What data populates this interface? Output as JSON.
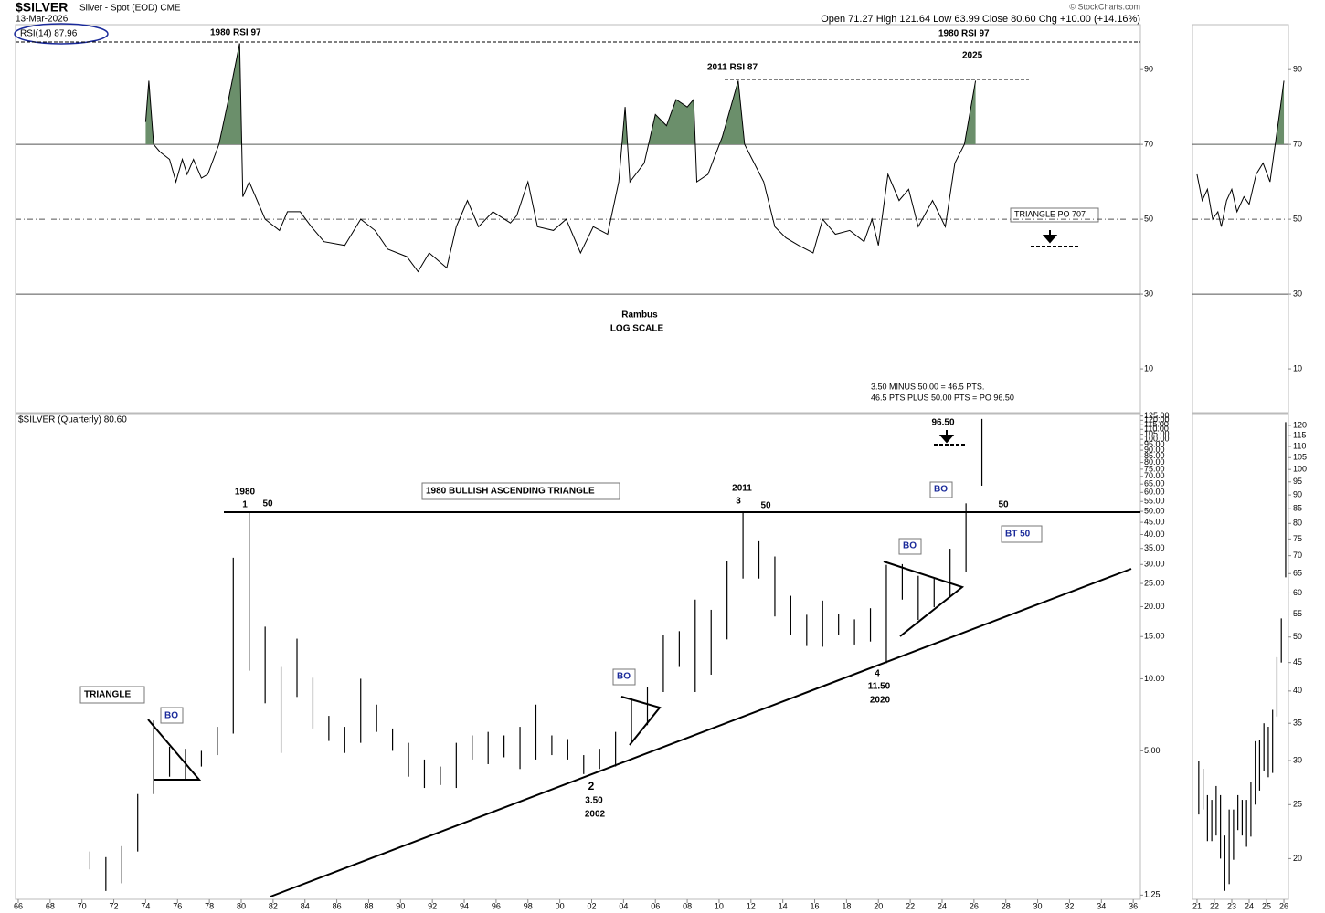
{
  "header": {
    "symbol": "$SILVER",
    "description": "Silver - Spot (EOD) CME",
    "date": "13-Mar-2026",
    "ohlc": "Open 71.27  High 121.64  Low 63.99  Close 80.60  Chg +10.00 (+14.16%)",
    "source": "© StockCharts.com"
  },
  "chart_data": [
    {
      "type": "stock",
      "xlim": [
        1965.83,
        2036.45
      ],
      "xticks": [
        {
          "value": 1966,
          "label": "66"
        },
        {
          "value": 1968,
          "label": "68"
        },
        {
          "value": 1970,
          "label": "70"
        },
        {
          "value": 1972,
          "label": "72"
        },
        {
          "value": 1974,
          "label": "74"
        },
        {
          "value": 1976,
          "label": "76"
        },
        {
          "value": 1978,
          "label": "78"
        },
        {
          "value": 1980,
          "label": "80"
        },
        {
          "value": 1982,
          "label": "82"
        },
        {
          "value": 1984,
          "label": "84"
        },
        {
          "value": 1986,
          "label": "86"
        },
        {
          "value": 1988,
          "label": "88"
        },
        {
          "value": 1990,
          "label": "90"
        },
        {
          "value": 1992,
          "label": "92"
        },
        {
          "value": 1994,
          "label": "94"
        },
        {
          "value": 1996,
          "label": "96"
        },
        {
          "value": 1998,
          "label": "98"
        },
        {
          "value": 2000,
          "label": "00"
        },
        {
          "value": 2002,
          "label": "02"
        },
        {
          "value": 2004,
          "label": "04"
        },
        {
          "value": 2006,
          "label": "06"
        },
        {
          "value": 2008,
          "label": "08"
        },
        {
          "value": 2010,
          "label": "10"
        },
        {
          "value": 2012,
          "label": "12"
        },
        {
          "value": 2014,
          "label": "14"
        },
        {
          "value": 2016,
          "label": "16"
        },
        {
          "value": 2018,
          "label": "18"
        },
        {
          "value": 2020,
          "label": "20"
        },
        {
          "value": 2022,
          "label": "22"
        },
        {
          "value": 2024,
          "label": "24"
        },
        {
          "value": 2026,
          "label": "26"
        },
        {
          "value": 2028,
          "label": "28"
        },
        {
          "value": 2030,
          "label": "30"
        },
        {
          "value": 2032,
          "label": "32"
        },
        {
          "value": 2034,
          "label": "34"
        },
        {
          "value": 2036,
          "label": "36"
        }
      ],
      "rsi": {
        "label": "RSI(14) 87.96",
        "color": "#000000",
        "fill_color": "#6b8f6b",
        "overbought": 70,
        "ylim": [
          -1.7,
          102
        ],
        "yticks": [
          10,
          30,
          50,
          70,
          90
        ],
        "reference_lines": [
          {
            "value": 70,
            "style": "solid"
          },
          {
            "value": 50,
            "style": "dashdot"
          },
          {
            "value": 30,
            "style": "solid"
          }
        ],
        "x": [
          1974.0,
          1974.2,
          1974.5,
          1974.9,
          1975.5,
          1975.9,
          1976.3,
          1976.6,
          1977.0,
          1977.5,
          1977.9,
          1978.6,
          1979.2,
          1979.9,
          1980.1,
          1980.5,
          1981.5,
          1982.4,
          1982.9,
          1983.7,
          1984.4,
          1985.2,
          1986.5,
          1987.5,
          1988.4,
          1989.2,
          1990.4,
          1991.1,
          1991.8,
          1992.9,
          1993.5,
          1994.2,
          1994.9,
          1995.8,
          1996.9,
          1997.3,
          1998.0,
          1998.6,
          1999.6,
          2000.4,
          2001.3,
          2002.1,
          2003.0,
          2003.7,
          2004.1,
          2004.4,
          2005.3,
          2006.0,
          2006.7,
          2007.3,
          2008.0,
          2008.4,
          2008.6,
          2009.3,
          2010.2,
          2011.2,
          2011.6,
          2012.2,
          2012.8,
          2013.5,
          2014.2,
          2015.0,
          2015.9,
          2016.5,
          2017.3,
          2018.2,
          2019.1,
          2019.6,
          2020.0,
          2020.6,
          2021.3,
          2021.9,
          2022.5,
          2023.4,
          2024.2,
          2024.8,
          2025.4,
          2026.1
        ],
        "values": [
          76,
          87,
          70,
          68,
          66,
          60,
          66,
          62,
          66,
          61,
          62,
          70,
          82,
          97,
          56,
          60,
          50,
          47,
          52,
          52,
          48,
          44,
          43,
          50,
          47,
          42,
          40,
          36,
          41,
          37,
          48,
          55,
          48,
          52,
          49,
          51,
          60,
          48,
          47,
          50,
          41,
          48,
          46,
          60,
          80,
          60,
          65,
          78,
          75,
          82,
          80,
          82,
          60,
          62,
          72,
          87,
          70,
          65,
          60,
          48,
          45,
          43,
          41,
          50,
          46,
          47,
          44,
          50,
          43,
          62,
          55,
          58,
          48,
          55,
          48,
          65,
          70,
          87
        ]
      },
      "price": {
        "label": "$SILVER (Quarterly) 80.60",
        "color": "#000000",
        "log_scale": true,
        "ylim": [
          1.2,
          128
        ],
        "yticks": [
          1.25,
          {
            "value": 5,
            "label": "5.00"
          },
          {
            "value": 10,
            "label": "10.00"
          },
          {
            "value": 15,
            "label": "15.00"
          },
          {
            "value": 20,
            "label": "20.00"
          },
          {
            "value": 25,
            "label": "25.00"
          },
          {
            "value": 30,
            "label": "30.00"
          },
          {
            "value": 35,
            "label": "35.00"
          },
          {
            "value": 40,
            "label": "40.00"
          },
          {
            "value": 45,
            "label": "45.00"
          },
          {
            "value": 50,
            "label": "50.00"
          },
          {
            "value": 55,
            "label": "55.00"
          },
          {
            "value": 60,
            "label": "60.00"
          },
          {
            "value": 65,
            "label": "65.00"
          },
          {
            "value": 70,
            "label": "70.00"
          },
          {
            "value": 75,
            "label": "75.00"
          },
          {
            "value": 80,
            "label": "80.00"
          },
          {
            "value": 85,
            "label": "85.00"
          },
          {
            "value": 90,
            "label": "90.00"
          },
          {
            "value": 95,
            "label": "95.00"
          },
          {
            "value": 100,
            "label": "100.00"
          },
          {
            "value": 105,
            "label": "105.00"
          },
          {
            "value": 110,
            "label": "110.00"
          },
          {
            "value": 115,
            "label": "115.00"
          },
          {
            "value": 120,
            "label": "120.00"
          },
          {
            "value": 125,
            "label": "125.00"
          }
        ],
        "x": [
          1970,
          1971,
          1972,
          1973,
          1974,
          1975,
          1976,
          1977,
          1978,
          1979,
          1980,
          1981,
          1982,
          1983,
          1984,
          1985,
          1986,
          1987,
          1988,
          1989,
          1990,
          1991,
          1992,
          1993,
          1994,
          1995,
          1996,
          1997,
          1998,
          1999,
          2000,
          2001,
          2002,
          2003,
          2004,
          2005,
          2006,
          2007,
          2008,
          2009,
          2010,
          2011,
          2012,
          2013,
          2014,
          2015,
          2016,
          2017,
          2018,
          2019,
          2020,
          2021,
          2022,
          2023,
          2024,
          2025,
          2026
        ],
        "high": [
          1.9,
          1.8,
          2.0,
          3.3,
          6.7,
          5.2,
          5.1,
          5.0,
          6.3,
          32,
          49.5,
          16.5,
          11.2,
          14.7,
          10.1,
          7.0,
          6.3,
          10.0,
          7.8,
          6.2,
          5.4,
          4.6,
          4.3,
          5.4,
          5.8,
          6.0,
          5.8,
          6.3,
          7.8,
          5.8,
          5.6,
          4.8,
          5.1,
          6.0,
          8.3,
          9.2,
          15.2,
          15.8,
          21.4,
          19.4,
          31,
          49.8,
          37.5,
          32.4,
          22.2,
          18.5,
          21.2,
          18.6,
          17.7,
          19.7,
          29.9,
          30.1,
          26.9,
          26.2,
          34.9,
          54,
          121.6
        ],
        "low": [
          1.6,
          1.3,
          1.4,
          1.9,
          3.3,
          3.9,
          3.8,
          4.3,
          4.8,
          5.9,
          10.8,
          7.9,
          4.9,
          8.4,
          6.2,
          5.5,
          4.9,
          5.4,
          6.0,
          5.0,
          3.9,
          3.5,
          3.6,
          3.5,
          4.6,
          4.4,
          4.7,
          4.2,
          4.6,
          4.8,
          4.6,
          4.0,
          4.2,
          4.3,
          5.5,
          6.4,
          8.8,
          11.2,
          8.8,
          10.4,
          14.6,
          26.2,
          26.2,
          18.2,
          15.3,
          13.7,
          13.6,
          15.2,
          13.9,
          14.3,
          11.6,
          21.4,
          17.6,
          19.9,
          21.9,
          28,
          64
        ]
      },
      "annotations": [
        "1980 RSI  97",
        "1980 RSI  97",
        "2011 RSI 87",
        "2025",
        "TRIANGLE PO 707",
        "Rambus",
        "LOG SCALE",
        "3.50 MINUS 50.00 = 46.5 PTS.",
        "46.5 PTS PLUS 50.00 PTS = PO 96.50",
        "96.50",
        "1980",
        "1",
        "50",
        "1980 BULLISH ASCENDING TRIANGLE",
        "2011",
        "3",
        "50",
        "BO",
        "50",
        "BT 50",
        "BO",
        "4",
        "11.50",
        "2020",
        "BO",
        "2",
        "3.50",
        "2002",
        "TRIANGLE",
        "BO"
      ]
    },
    {
      "type": "stock",
      "xlim": [
        2020.74,
        2026.26
      ],
      "xticks": [
        {
          "value": 2021,
          "label": "21"
        },
        {
          "value": 2022,
          "label": "22"
        },
        {
          "value": 2023,
          "label": "23"
        },
        {
          "value": 2024,
          "label": "24"
        },
        {
          "value": 2025,
          "label": "25"
        },
        {
          "value": 2026,
          "label": "26"
        }
      ],
      "rsi": {
        "color": "#000000",
        "fill_color": "#6b8f6b",
        "overbought": 70,
        "ylim": [
          -1.7,
          102
        ],
        "yticks": [
          10,
          30,
          50,
          70,
          90
        ],
        "reference_lines": [
          {
            "value": 70,
            "style": "solid"
          },
          {
            "value": 50,
            "style": "dashdot"
          },
          {
            "value": 30,
            "style": "solid"
          }
        ],
        "x": [
          2021.0,
          2021.3,
          2021.6,
          2021.9,
          2022.2,
          2022.4,
          2022.7,
          2023.0,
          2023.3,
          2023.7,
          2024.0,
          2024.4,
          2024.8,
          2025.2,
          2025.5,
          2025.8,
          2026.0
        ],
        "values": [
          62,
          55,
          58,
          50,
          52,
          48,
          55,
          58,
          52,
          56,
          54,
          62,
          65,
          60,
          70,
          80,
          87
        ]
      },
      "price": {
        "color": "#000000",
        "log_scale": true,
        "ylim": [
          16.9,
          126
        ],
        "yticks": [
          20,
          25,
          30,
          35,
          40,
          45,
          50,
          55,
          60,
          65,
          70,
          75,
          80,
          85,
          90,
          95,
          100,
          105,
          110,
          115,
          120
        ],
        "x": [
          2021.1,
          2021.35,
          2021.6,
          2021.85,
          2022.1,
          2022.35,
          2022.6,
          2022.85,
          2023.1,
          2023.35,
          2023.6,
          2023.85,
          2024.1,
          2024.35,
          2024.6,
          2024.85,
          2025.1,
          2025.35,
          2025.6,
          2025.85,
          2026.1
        ],
        "high": [
          30,
          29,
          26,
          25.5,
          27,
          26,
          22,
          24.5,
          24.5,
          26,
          25.5,
          25.5,
          27.5,
          32.5,
          32.7,
          35,
          34.5,
          37,
          46,
          54,
          121.6
        ],
        "low": [
          24,
          24.5,
          21.5,
          21.5,
          22,
          20,
          17.5,
          18,
          19.9,
          22.5,
          22,
          21,
          21.9,
          25,
          26.5,
          28.7,
          28,
          28.5,
          36,
          45,
          64
        ]
      }
    }
  ]
}
